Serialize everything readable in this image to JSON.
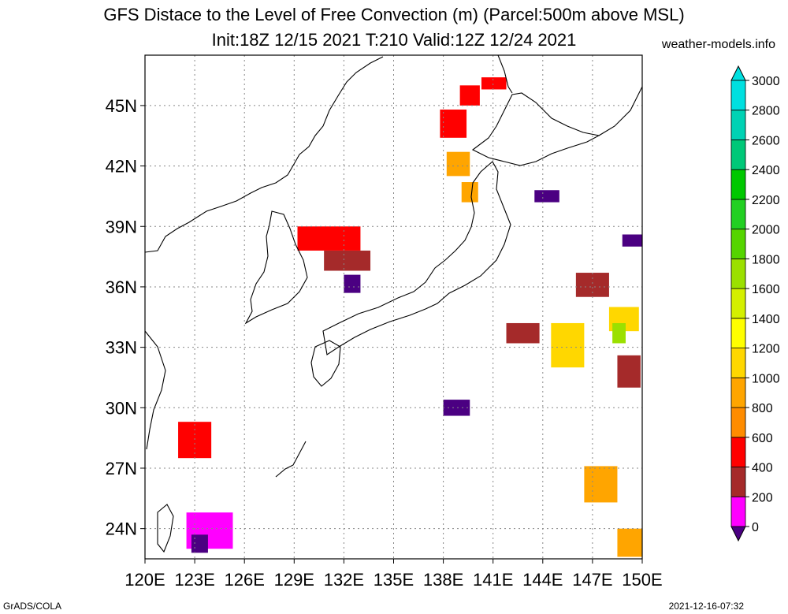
{
  "title": {
    "line1": "GFS Distace to the Level of Free Convection (m) (Parcel:500m above MSL)",
    "line2": "Init:18Z 12/15 2021 T:210 Valid:12Z 12/24 2021"
  },
  "brand": "weather-models.info",
  "footer": {
    "left": "GrADS/COLA",
    "right": "2021-12-16-07:32"
  },
  "map": {
    "lon_range": [
      120,
      150
    ],
    "lat_range": [
      22.5,
      47.5
    ],
    "lon_ticks": [
      "120E",
      "123E",
      "126E",
      "129E",
      "132E",
      "135E",
      "138E",
      "141E",
      "144E",
      "147E",
      "150E"
    ],
    "lon_values": [
      120,
      123,
      126,
      129,
      132,
      135,
      138,
      141,
      144,
      147,
      150
    ],
    "lat_ticks": [
      "24N",
      "27N",
      "30N",
      "33N",
      "36N",
      "39N",
      "42N",
      "45N"
    ],
    "lat_values": [
      24,
      27,
      30,
      33,
      36,
      39,
      42,
      45
    ],
    "grid": true
  },
  "colorbar": {
    "labels": [
      "0",
      "200",
      "400",
      "600",
      "800",
      "1000",
      "1200",
      "1400",
      "1600",
      "1800",
      "2000",
      "2200",
      "2400",
      "2600",
      "2800",
      "3000"
    ],
    "colors": [
      "#4b0082",
      "#ff00ff",
      "#a52a2a",
      "#ff0000",
      "#ff8c00",
      "#ffa500",
      "#ffd700",
      "#ffff00",
      "#d4f000",
      "#9be000",
      "#55d500",
      "#22d022",
      "#00c800",
      "#00c878",
      "#00d2b4",
      "#00e0e0"
    ]
  },
  "fields": [
    {
      "name": "hokkaido-west",
      "color": "#ff0000",
      "cells": [
        [
          139.0,
          45.0,
          1.2,
          1.0
        ],
        [
          140.3,
          45.8,
          1.5,
          0.6
        ],
        [
          137.8,
          43.4,
          1.6,
          1.4
        ]
      ]
    },
    {
      "name": "japan-sea-north",
      "color": "#ffa500",
      "cells": [
        [
          138.2,
          41.5,
          1.4,
          1.2
        ],
        [
          139.1,
          40.2,
          1.0,
          1.0
        ]
      ]
    },
    {
      "name": "korea-band",
      "color": "#ff0000",
      "cells": [
        [
          129.2,
          37.8,
          3.8,
          1.2
        ]
      ]
    },
    {
      "name": "korea-band-brown",
      "color": "#a52a2a",
      "cells": [
        [
          130.8,
          36.8,
          2.8,
          1.0
        ]
      ]
    },
    {
      "name": "korea-purple",
      "color": "#4b0082",
      "cells": [
        [
          132.0,
          35.7,
          1.0,
          0.9
        ]
      ]
    },
    {
      "name": "pacific-east-yellow",
      "color": "#ffd700",
      "cells": [
        [
          144.5,
          32.0,
          2.0,
          2.2
        ],
        [
          148.0,
          33.8,
          1.8,
          1.2
        ]
      ]
    },
    {
      "name": "pacific-east-brown",
      "color": "#a52a2a",
      "cells": [
        [
          141.8,
          33.2,
          2.0,
          1.0
        ],
        [
          146.0,
          35.5,
          2.0,
          1.2
        ],
        [
          148.5,
          31.0,
          1.4,
          1.6
        ]
      ]
    },
    {
      "name": "pacific-green",
      "color": "#9be000",
      "cells": [
        [
          148.2,
          33.2,
          0.8,
          1.0
        ]
      ]
    },
    {
      "name": "okinawa-red",
      "color": "#ff0000",
      "cells": [
        [
          122.0,
          27.5,
          2.0,
          1.8
        ]
      ]
    },
    {
      "name": "taiwan-magenta",
      "color": "#ff00ff",
      "cells": [
        [
          122.5,
          23.0,
          2.8,
          1.8
        ]
      ]
    },
    {
      "name": "taiwan-purple",
      "color": "#4b0082",
      "cells": [
        [
          122.8,
          22.8,
          1.0,
          0.9
        ]
      ]
    },
    {
      "name": "southeast-orange",
      "color": "#ffa500",
      "cells": [
        [
          146.5,
          25.3,
          2.0,
          1.8
        ],
        [
          148.5,
          22.6,
          1.5,
          1.4
        ]
      ]
    },
    {
      "name": "south-purple",
      "color": "#4b0082",
      "cells": [
        [
          138.0,
          29.6,
          1.6,
          0.8
        ]
      ]
    },
    {
      "name": "east-purple",
      "color": "#4b0082",
      "cells": [
        [
          143.5,
          40.2,
          1.5,
          0.6
        ],
        [
          148.8,
          38.0,
          1.2,
          0.6
        ]
      ]
    }
  ]
}
